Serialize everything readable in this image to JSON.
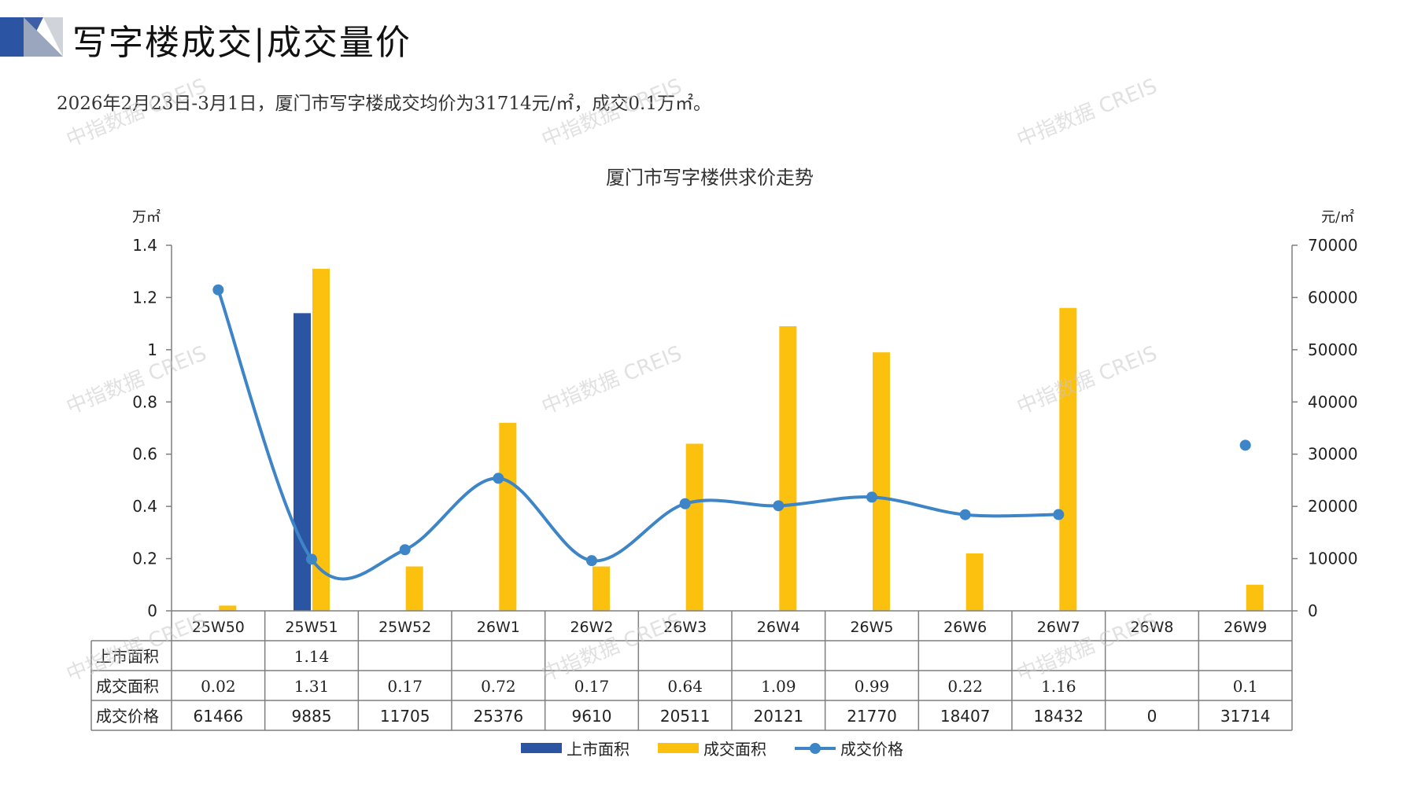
{
  "header": {
    "title": "写字楼成交|成交量价",
    "summary": "2026年2月23日-3月1日，厦门市写字楼成交均价为31714元/㎡，成交0.1万㎡。"
  },
  "watermark": "中指数据 CREIS",
  "colors": {
    "supply": "#2b55a3",
    "deal_area": "#fcc00e",
    "price": "#3d85c6",
    "grid": "#7f7f7f"
  },
  "chart_data": {
    "type": "bar",
    "title": "厦门市写字楼供求价走势",
    "ylabel_left": "万㎡",
    "ylabel_right": "元/㎡",
    "ylim_left": [
      0,
      1.4
    ],
    "ylim_right": [
      0,
      70000
    ],
    "yticks_left": [
      "0",
      "0.2",
      "0.4",
      "0.6",
      "0.8",
      "1",
      "1.2",
      "1.4"
    ],
    "yticks_right": [
      "0",
      "10000",
      "20000",
      "30000",
      "40000",
      "50000",
      "60000",
      "70000"
    ],
    "categories": [
      "25W50",
      "25W51",
      "25W52",
      "26W1",
      "26W2",
      "26W3",
      "26W4",
      "26W5",
      "26W6",
      "26W7",
      "26W8",
      "26W9"
    ],
    "series": [
      {
        "name": "上市面积",
        "type": "bar",
        "axis": "left",
        "values": [
          null,
          1.14,
          null,
          null,
          null,
          null,
          null,
          null,
          null,
          null,
          null,
          null
        ],
        "labels": [
          "",
          "1.14",
          "",
          "",
          "",
          "",
          "",
          "",
          "",
          "",
          "",
          ""
        ]
      },
      {
        "name": "成交面积",
        "type": "bar",
        "axis": "left",
        "values": [
          0.02,
          1.31,
          0.17,
          0.72,
          0.17,
          0.64,
          1.09,
          0.99,
          0.22,
          1.16,
          null,
          0.1
        ],
        "labels": [
          "0.02",
          "1.31",
          "0.17",
          "0.72",
          "0.17",
          "0.64",
          "1.09",
          "0.99",
          "0.22",
          "1.16",
          "",
          "0.1"
        ]
      },
      {
        "name": "成交价格",
        "type": "line",
        "axis": "right",
        "values": [
          61466,
          9885,
          11705,
          25376,
          9610,
          20511,
          20121,
          21770,
          18407,
          18432,
          0,
          31714
        ],
        "labels": [
          "61466",
          "9885",
          "11705",
          "25376",
          "9610",
          "20511",
          "20121",
          "21770",
          "18407",
          "18432",
          "0",
          "31714"
        ]
      }
    ],
    "legend_position": "bottom"
  }
}
